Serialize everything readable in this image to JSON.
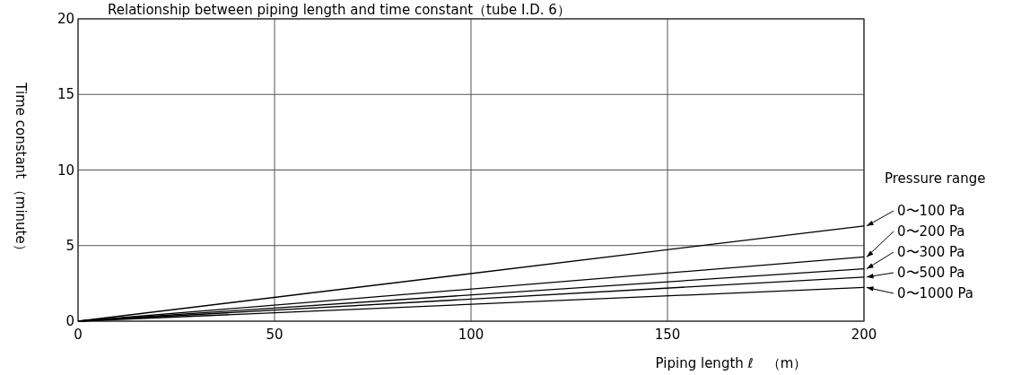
{
  "chart_data": {
    "type": "line",
    "title": "Relationship between piping length and time constant（tube I.D. 6）",
    "xlabel": "Piping length ℓ　（m）",
    "ylabel": "Time constant （minute）",
    "legend_title": "Pressure range",
    "x": [
      0,
      200
    ],
    "series": [
      {
        "name": "0〜100 Pa",
        "color": "#000000",
        "values": [
          0,
          6.3
        ]
      },
      {
        "name": "0〜200 Pa",
        "color": "#000000",
        "values": [
          0,
          4.25
        ]
      },
      {
        "name": "0〜300 Pa",
        "color": "#000000",
        "values": [
          0,
          3.47
        ]
      },
      {
        "name": "0〜500 Pa",
        "color": "#000000",
        "values": [
          0,
          2.92
        ]
      },
      {
        "name": "0〜1000 Pa",
        "color": "#000000",
        "values": [
          0,
          2.23
        ]
      }
    ],
    "xlim": [
      0,
      200
    ],
    "ylim": [
      0,
      20
    ],
    "xticks": [
      0,
      50,
      100,
      150,
      200
    ],
    "yticks": [
      0,
      5,
      10,
      15,
      20
    ],
    "grid": true,
    "legend": "right",
    "marker": "none",
    "line_style": "solid"
  }
}
